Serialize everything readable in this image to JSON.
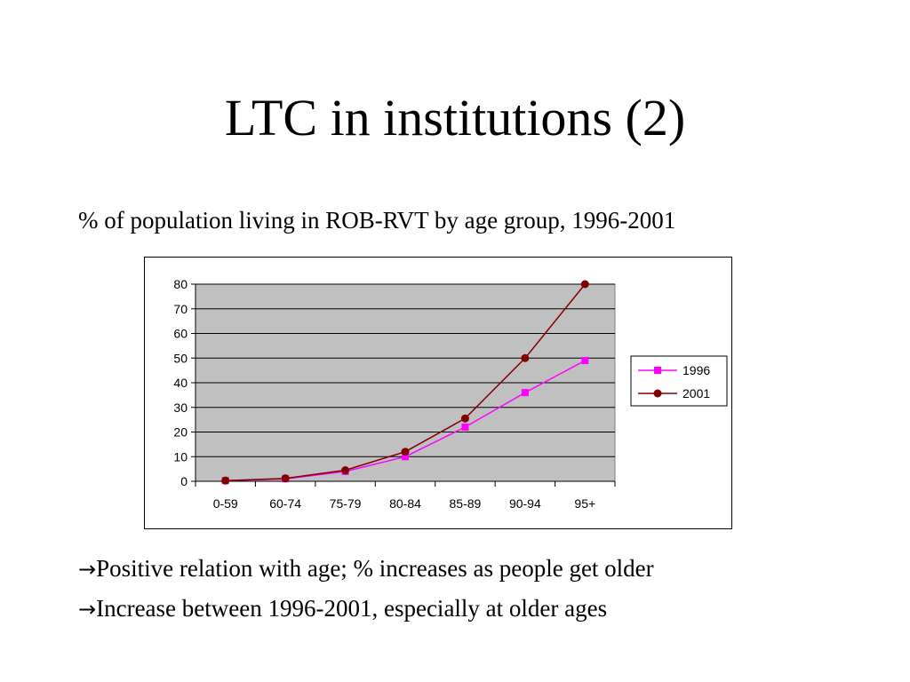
{
  "slide": {
    "title": "LTC in institutions (2)",
    "subtitle": "% of population living in ROB-RVT by age group, 1996-2001"
  },
  "bullets": [
    {
      "arrow": "→",
      "text": "Positive relation with age; % increases as people get older"
    },
    {
      "arrow": "→",
      "text": "Increase between 1996-2001, especially at older ages"
    }
  ],
  "chart_data": {
    "type": "line",
    "categories": [
      "0-59",
      "60-74",
      "75-79",
      "80-84",
      "85-89",
      "90-94",
      "95+"
    ],
    "series": [
      {
        "name": "1996",
        "values": [
          0.3,
          1.0,
          4.0,
          10.0,
          22.0,
          36.0,
          49.0
        ],
        "color": "#ff00ff",
        "marker": "square"
      },
      {
        "name": "2001",
        "values": [
          0.3,
          1.2,
          4.5,
          12.0,
          25.5,
          50.0,
          80.0
        ],
        "color": "#800000",
        "marker": "circle"
      }
    ],
    "ylim": [
      0,
      80
    ],
    "yticks": [
      "0",
      "10",
      "20",
      "30",
      "40",
      "50",
      "60",
      "70",
      "80"
    ],
    "plot_background": "#c0c0c0",
    "grid": true,
    "legend": "right",
    "title": "",
    "xlabel": "",
    "ylabel": ""
  }
}
